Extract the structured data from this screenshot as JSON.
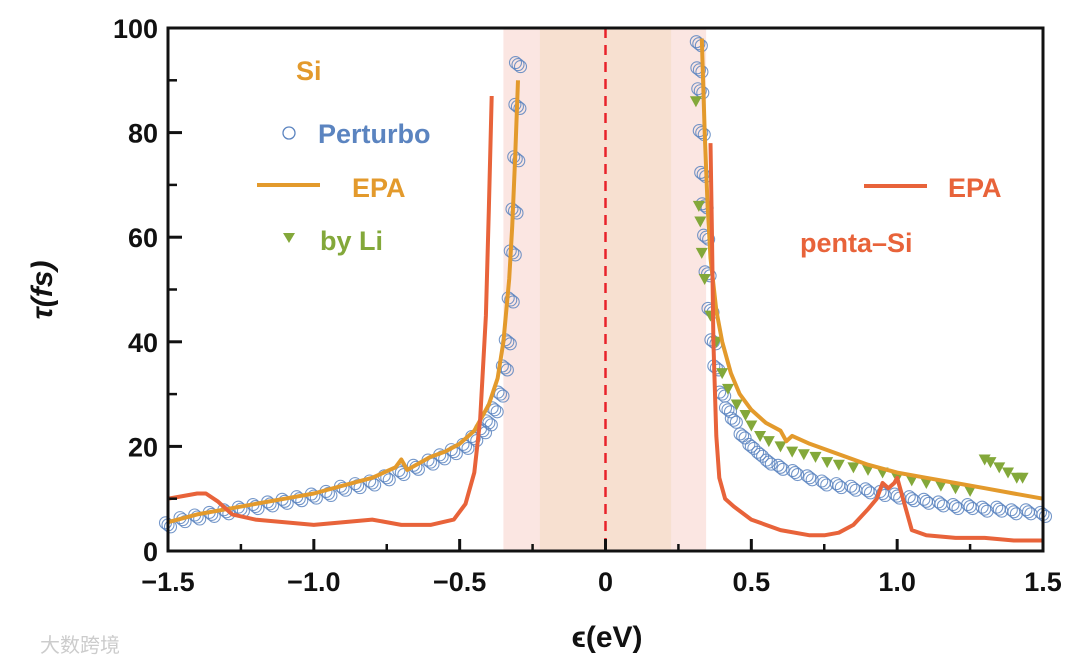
{
  "chart_data": {
    "type": "scatter",
    "title": "",
    "xlabel": "ϵ(eV)",
    "ylabel": "τ(fs)",
    "xlim": [
      -1.5,
      1.5
    ],
    "ylim": [
      0,
      100
    ],
    "x_ticks": [
      "−1.5",
      "−1.0",
      "−0.5",
      "0",
      "0.5",
      "1.0",
      "1.5"
    ],
    "x_tick_values": [
      -1.5,
      -1.0,
      -0.5,
      0,
      0.5,
      1.0,
      1.5
    ],
    "y_ticks": [
      "0",
      "20",
      "40",
      "60",
      "80",
      "100"
    ],
    "y_tick_values": [
      0,
      20,
      40,
      60,
      80,
      100
    ],
    "shaded_regions": [
      {
        "x0": -0.35,
        "x1": 0.345,
        "color": "#fbe6e2"
      },
      {
        "x0": -0.225,
        "x1": 0.225,
        "color": "#f7e0d0"
      }
    ],
    "fermi_line": {
      "x": 0,
      "color": "#e8232a",
      "style": "dashed"
    },
    "legend": {
      "si_title": "Si",
      "penta_title": "penta–Si",
      "perturbo": "Perturbo",
      "epa_si": "EPA",
      "by_li": "by Li",
      "epa_penta": "EPA"
    },
    "colors": {
      "perturbo": "#5b84c0",
      "epa_si": "#e39a2c",
      "by_li": "#83a83a",
      "epa_penta": "#e8633a",
      "si_title": "#e39a2c",
      "penta_title": "#e8633a"
    },
    "series": [
      {
        "name": "Si EPA (left)",
        "type": "line",
        "color": "#e39a2c",
        "x": [
          -1.5,
          -1.4,
          -1.3,
          -1.2,
          -1.1,
          -1.0,
          -0.9,
          -0.8,
          -0.72,
          -0.7,
          -0.68,
          -0.6,
          -0.55,
          -0.5,
          -0.45,
          -0.4,
          -0.37,
          -0.35,
          -0.33,
          -0.32,
          -0.31,
          -0.3
        ],
        "y": [
          5.5,
          7,
          8,
          9,
          10,
          11,
          12.5,
          14,
          16,
          17.5,
          15.5,
          18,
          19,
          20.5,
          23,
          28,
          33,
          40,
          52,
          62,
          75,
          90
        ]
      },
      {
        "name": "Si EPA (right)",
        "type": "line",
        "color": "#e39a2c",
        "x": [
          0.33,
          0.34,
          0.35,
          0.36,
          0.38,
          0.4,
          0.43,
          0.46,
          0.5,
          0.55,
          0.6,
          0.62,
          0.64,
          0.7,
          0.8,
          0.9,
          1.0,
          1.1,
          1.2,
          1.3,
          1.4,
          1.5
        ],
        "y": [
          98,
          80,
          66,
          56,
          46,
          40,
          34,
          30,
          27,
          24.5,
          23,
          21,
          22,
          20.5,
          18.5,
          16.5,
          15,
          14,
          13,
          12,
          11,
          10
        ]
      },
      {
        "name": "penta-Si EPA (left)",
        "type": "line",
        "color": "#e8633a",
        "x": [
          -1.5,
          -1.45,
          -1.4,
          -1.37,
          -1.33,
          -1.28,
          -1.2,
          -1.1,
          -1.0,
          -0.9,
          -0.8,
          -0.7,
          -0.6,
          -0.52,
          -0.48,
          -0.45,
          -0.43,
          -0.41,
          -0.4,
          -0.39
        ],
        "y": [
          10,
          10.5,
          11,
          11,
          9.5,
          7,
          6,
          5.5,
          5,
          5.5,
          6,
          5,
          5,
          6,
          9,
          15,
          25,
          45,
          65,
          87
        ]
      },
      {
        "name": "penta-Si EPA (right)",
        "type": "line",
        "color": "#e8633a",
        "x": [
          0.36,
          0.365,
          0.37,
          0.38,
          0.39,
          0.41,
          0.44,
          0.5,
          0.6,
          0.7,
          0.75,
          0.8,
          0.85,
          0.9,
          0.93,
          0.95,
          0.97,
          0.99,
          1.0,
          1.02,
          1.05,
          1.1,
          1.2,
          1.3,
          1.4,
          1.5
        ],
        "y": [
          78,
          60,
          40,
          22,
          14,
          10,
          8.5,
          6,
          4,
          3,
          3,
          3.5,
          5,
          8,
          10,
          13,
          12,
          13,
          14,
          10,
          4,
          3,
          2.5,
          2.5,
          2,
          2
        ]
      },
      {
        "name": "Perturbo",
        "type": "scatter",
        "color": "#5b84c0",
        "x": [
          -1.5,
          -1.45,
          -1.4,
          -1.35,
          -1.3,
          -1.25,
          -1.2,
          -1.15,
          -1.1,
          -1.05,
          -1.0,
          -0.95,
          -0.9,
          -0.85,
          -0.8,
          -0.75,
          -0.7,
          -0.65,
          -0.6,
          -0.56,
          -0.52,
          -0.48,
          -0.45,
          -0.42,
          -0.4,
          -0.38,
          -0.36,
          -0.345,
          -0.335,
          -0.325,
          -0.318,
          -0.312,
          -0.306,
          -0.302,
          -0.3,
          0.32,
          0.322,
          0.325,
          0.33,
          0.335,
          0.34,
          0.345,
          0.35,
          0.36,
          0.37,
          0.38,
          0.4,
          0.42,
          0.44,
          0.47,
          0.5,
          0.53,
          0.56,
          0.6,
          0.65,
          0.7,
          0.75,
          0.8,
          0.85,
          0.9,
          0.95,
          1.0,
          1.05,
          1.1,
          1.15,
          1.2,
          1.25,
          1.3,
          1.35,
          1.4,
          1.45,
          1.5
        ],
        "y": [
          5,
          6,
          6.5,
          7,
          7.5,
          8,
          8.5,
          9,
          9.5,
          10,
          10.5,
          11,
          12,
          12.5,
          13,
          14,
          15,
          16,
          17,
          18,
          19,
          20,
          21.5,
          23,
          24.5,
          27,
          30,
          35,
          40,
          48,
          57,
          65,
          75,
          85,
          93,
          97,
          92,
          88,
          80,
          72,
          66,
          60,
          53,
          46,
          40,
          35,
          30,
          27,
          25,
          22,
          20,
          18.5,
          17,
          16,
          15,
          14,
          13,
          12.5,
          12,
          11.5,
          11,
          10.5,
          10,
          9.5,
          9,
          8.5,
          8.5,
          8,
          8,
          7.5,
          7.5,
          7
        ]
      },
      {
        "name": "by Li",
        "type": "scatter",
        "color": "#83a83a",
        "x": [
          0.31,
          0.32,
          0.325,
          0.33,
          0.34,
          0.36,
          0.38,
          0.4,
          0.42,
          0.45,
          0.48,
          0.5,
          0.53,
          0.56,
          0.6,
          0.64,
          0.68,
          0.72,
          0.76,
          0.8,
          0.85,
          0.9,
          0.95,
          1.0,
          1.05,
          1.1,
          1.15,
          1.2,
          1.25,
          1.3,
          1.32,
          1.35,
          1.38,
          1.41,
          1.43
        ],
        "y": [
          86,
          66,
          63,
          57,
          52,
          45,
          40,
          34,
          31,
          28,
          26,
          24,
          22,
          21,
          20,
          19,
          18.5,
          18,
          17,
          16.5,
          16,
          15.5,
          15,
          14,
          13.5,
          13,
          12.5,
          12,
          11.5,
          17.5,
          17,
          16,
          15,
          14,
          14
        ]
      }
    ],
    "watermark": "大数跨境"
  }
}
